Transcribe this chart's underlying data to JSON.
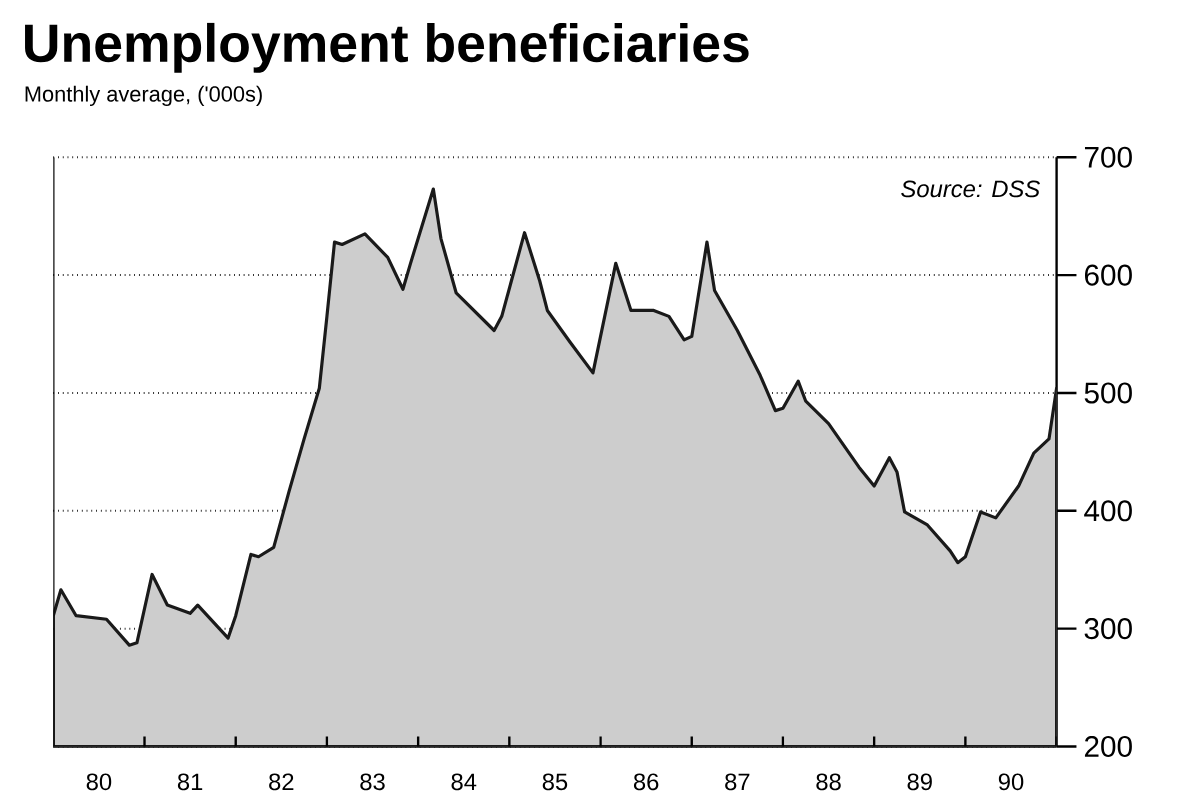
{
  "chart_data": {
    "type": "area",
    "title": "Unemployment beneficiaries",
    "subtitle": "Monthly average, ('000s)",
    "annotations": [
      "Source: DSS"
    ],
    "xlim": [
      "1980-01",
      "1991-01"
    ],
    "ylim": [
      200,
      700
    ],
    "yticks": [
      200,
      300,
      400,
      500,
      600,
      700
    ],
    "xticks": [
      {
        "value": "1980-07",
        "label": "80"
      },
      {
        "value": "1981-07",
        "label": "81"
      },
      {
        "value": "1982-07",
        "label": "82"
      },
      {
        "value": "1983-07",
        "label": "83"
      },
      {
        "value": "1984-07",
        "label": "84"
      },
      {
        "value": "1985-07",
        "label": "85"
      },
      {
        "value": "1986-07",
        "label": "86"
      },
      {
        "value": "1987-07",
        "label": "87"
      },
      {
        "value": "1988-07",
        "label": "88"
      },
      {
        "value": "1989-07",
        "label": "89"
      },
      {
        "value": "1990-07",
        "label": "90"
      },
      {
        "value": "1981-01",
        "label": null
      },
      {
        "value": "1982-01",
        "label": null
      },
      {
        "value": "1983-01",
        "label": null
      },
      {
        "value": "1984-01",
        "label": null
      },
      {
        "value": "1985-01",
        "label": null
      },
      {
        "value": "1986-01",
        "label": null
      },
      {
        "value": "1987-01",
        "label": null
      },
      {
        "value": "1988-01",
        "label": null
      },
      {
        "value": "1989-01",
        "label": null
      },
      {
        "value": "1990-01",
        "label": null
      },
      {
        "value": "1991-01",
        "label": null
      }
    ],
    "grid": "y",
    "series": [
      {
        "color": "#1a1a1a",
        "x": [
          "1980-01",
          "1980-02",
          "1980-04",
          "1980-08",
          "1980-11",
          "1980-12",
          "1981-02",
          "1981-04",
          "1981-07",
          "1981-08",
          "1981-12",
          "1982-01",
          "1982-03",
          "1982-04",
          "1982-06",
          "1982-08",
          "1982-10",
          "1982-12",
          "1983-01",
          "1983-02",
          "1983-03",
          "1983-06",
          "1983-09",
          "1983-11",
          "1983-12",
          "1984-03",
          "1984-04",
          "1984-06",
          "1984-11",
          "1984-12",
          "1985-03",
          "1985-05",
          "1985-06",
          "1985-09",
          "1985-12",
          "1986-03",
          "1986-05",
          "1986-08",
          "1986-10",
          "1986-12",
          "1987-01",
          "1987-03",
          "1987-04",
          "1987-07",
          "1987-10",
          "1987-12",
          "1988-01",
          "1988-03",
          "1988-04",
          "1988-07",
          "1988-11",
          "1989-01",
          "1989-03",
          "1989-04",
          "1989-05",
          "1989-08",
          "1989-11",
          "1989-12",
          "1990-01",
          "1990-03",
          "1990-05",
          "1990-08",
          "1990-10",
          "1990-12",
          "1991-01"
        ],
        "values": [
          311,
          333,
          311,
          308,
          286,
          288,
          346,
          320,
          313,
          320,
          292,
          311,
          363,
          361,
          369,
          416,
          461,
          504,
          565,
          628,
          626,
          635,
          615,
          588,
          610,
          673,
          631,
          585,
          553,
          565,
          636,
          595,
          570,
          543,
          517,
          610,
          570,
          570,
          565,
          545,
          548,
          628,
          587,
          553,
          515,
          485,
          487,
          510,
          493,
          474,
          437,
          421,
          445,
          433,
          399,
          388,
          366,
          356,
          361,
          399,
          394,
          421,
          449,
          461,
          504
        ]
      }
    ]
  }
}
